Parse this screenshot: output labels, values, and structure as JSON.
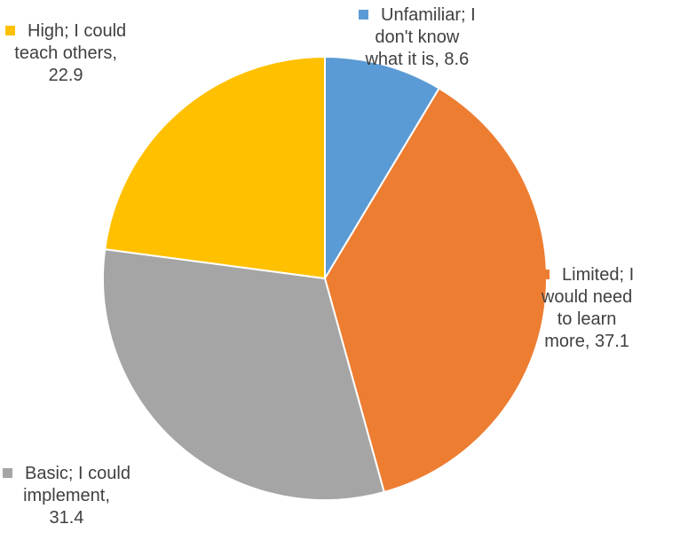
{
  "chart_data": {
    "type": "pie",
    "title": "",
    "start_angle_deg": 0,
    "direction": "clockwise",
    "slices": [
      {
        "label_lines": [
          "Unfamiliar; I",
          "don't know",
          "what it is, 8.6"
        ],
        "value": 8.6,
        "color": "#5b9bd5"
      },
      {
        "label_lines": [
          "Limited; I",
          "would need",
          "to learn",
          "more, 37.1"
        ],
        "value": 37.1,
        "color": "#ed7d31"
      },
      {
        "label_lines": [
          "Basic; I could",
          "implement,",
          "31.4"
        ],
        "value": 31.4,
        "color": "#a5a5a5"
      },
      {
        "label_lines": [
          "High; I could",
          "teach others,",
          "22.9"
        ],
        "value": 22.9,
        "color": "#ffc000"
      }
    ]
  }
}
